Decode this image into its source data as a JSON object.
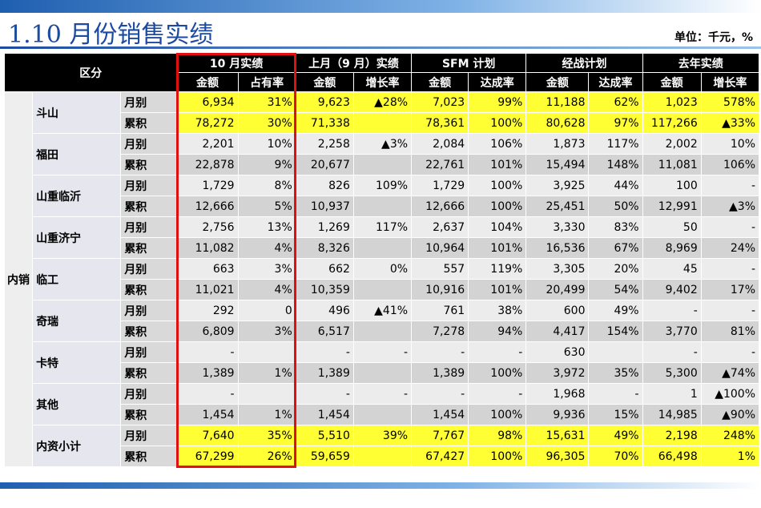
{
  "header": {
    "title": "1.10 月份销售实绩",
    "unit": "单位：千元，%"
  },
  "table": {
    "corner": "区分",
    "region": "内销",
    "groups": [
      "10 月实绩",
      "上月（9 月）实绩",
      "SFM 计划",
      "经战计划",
      "去年实绩"
    ],
    "subheaders": [
      "金额",
      "占有率",
      "金额",
      "增长率",
      "金额",
      "达成率",
      "金额",
      "达成率",
      "金额",
      "增长率"
    ],
    "companies": [
      {
        "name": "斗山",
        "highlight": true,
        "rows": [
          {
            "label": "月别",
            "cells": [
              "6,934",
              "31%",
              "9,623",
              "▲28%",
              "7,023",
              "99%",
              "11,188",
              "62%",
              "1,023",
              "578%"
            ]
          },
          {
            "label": "累积",
            "cells": [
              "78,272",
              "30%",
              "71,338",
              null,
              "78,361",
              "100%",
              "80,628",
              "97%",
              "117,266",
              "▲33%"
            ]
          }
        ]
      },
      {
        "name": "福田",
        "highlight": false,
        "rows": [
          {
            "label": "月别",
            "cells": [
              "2,201",
              "10%",
              "2,258",
              "▲3%",
              "2,084",
              "106%",
              "1,873",
              "117%",
              "2,002",
              "10%"
            ]
          },
          {
            "label": "累积",
            "cells": [
              "22,878",
              "9%",
              "20,677",
              null,
              "22,761",
              "101%",
              "15,494",
              "148%",
              "11,081",
              "106%"
            ]
          }
        ]
      },
      {
        "name": "山重临沂",
        "highlight": false,
        "rows": [
          {
            "label": "月别",
            "cells": [
              "1,729",
              "8%",
              "826",
              "109%",
              "1,729",
              "100%",
              "3,925",
              "44%",
              "100",
              "-"
            ]
          },
          {
            "label": "累积",
            "cells": [
              "12,666",
              "5%",
              "10,937",
              null,
              "12,666",
              "100%",
              "25,451",
              "50%",
              "12,991",
              "▲3%"
            ]
          }
        ]
      },
      {
        "name": "山重济宁",
        "highlight": false,
        "rows": [
          {
            "label": "月别",
            "cells": [
              "2,756",
              "13%",
              "1,269",
              "117%",
              "2,637",
              "104%",
              "3,330",
              "83%",
              "50",
              "-"
            ]
          },
          {
            "label": "累积",
            "cells": [
              "11,082",
              "4%",
              "8,326",
              null,
              "10,964",
              "101%",
              "16,536",
              "67%",
              "8,969",
              "24%"
            ]
          }
        ]
      },
      {
        "name": "临工",
        "highlight": false,
        "rows": [
          {
            "label": "月别",
            "cells": [
              "663",
              "3%",
              "662",
              "0%",
              "557",
              "119%",
              "3,305",
              "20%",
              "45",
              "-"
            ]
          },
          {
            "label": "累积",
            "cells": [
              "11,021",
              "4%",
              "10,359",
              null,
              "10,916",
              "101%",
              "20,499",
              "54%",
              "9,402",
              "17%"
            ]
          }
        ]
      },
      {
        "name": "奇瑞",
        "highlight": false,
        "rows": [
          {
            "label": "月别",
            "cells": [
              "292",
              "0",
              "496",
              "▲41%",
              "761",
              "38%",
              "600",
              "49%",
              "-",
              "-"
            ]
          },
          {
            "label": "累积",
            "cells": [
              "6,809",
              "3%",
              "6,517",
              null,
              "7,278",
              "94%",
              "4,417",
              "154%",
              "3,770",
              "81%"
            ]
          }
        ]
      },
      {
        "name": "卡特",
        "highlight": false,
        "rows": [
          {
            "label": "月别",
            "cells": [
              "-",
              null,
              "-",
              "-",
              "-",
              "-",
              "630",
              null,
              "-",
              "-"
            ]
          },
          {
            "label": "累积",
            "cells": [
              "1,389",
              "1%",
              "1,389",
              null,
              "1,389",
              "100%",
              "3,972",
              "35%",
              "5,300",
              "▲74%"
            ]
          }
        ]
      },
      {
        "name": "其他",
        "highlight": false,
        "rows": [
          {
            "label": "月别",
            "cells": [
              "-",
              null,
              "-",
              "-",
              "-",
              "-",
              "1,968",
              "-",
              "1",
              "▲100%"
            ]
          },
          {
            "label": "累积",
            "cells": [
              "1,454",
              "1%",
              "1,454",
              null,
              "1,454",
              "100%",
              "9,936",
              "15%",
              "14,985",
              "▲90%"
            ]
          }
        ]
      },
      {
        "name": "内资小计",
        "highlight": true,
        "rows": [
          {
            "label": "月别",
            "cells": [
              "7,640",
              "35%",
              "5,510",
              "39%",
              "7,767",
              "98%",
              "15,631",
              "49%",
              "2,198",
              "248%"
            ]
          },
          {
            "label": "累积",
            "cells": [
              "67,299",
              "26%",
              "59,659",
              null,
              "67,427",
              "100%",
              "96,305",
              "70%",
              "66,498",
              "1%"
            ]
          }
        ]
      }
    ]
  }
}
